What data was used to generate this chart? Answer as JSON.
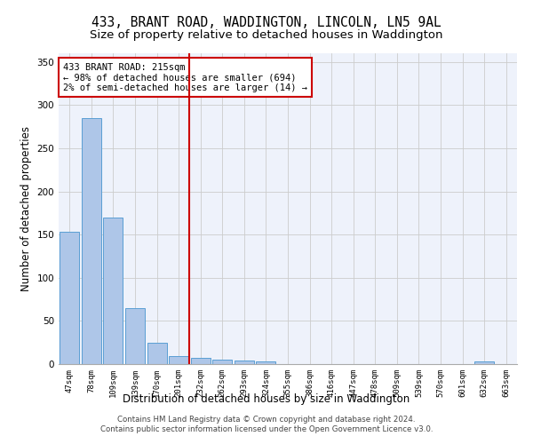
{
  "title": "433, BRANT ROAD, WADDINGTON, LINCOLN, LN5 9AL",
  "subtitle": "Size of property relative to detached houses in Waddington",
  "xlabel": "Distribution of detached houses by size in Waddington",
  "ylabel": "Number of detached properties",
  "bar_values": [
    153,
    285,
    170,
    65,
    25,
    9,
    7,
    5,
    4,
    3,
    0,
    0,
    0,
    0,
    0,
    0,
    0,
    0,
    0,
    3,
    0
  ],
  "bar_labels": [
    "47sqm",
    "78sqm",
    "109sqm",
    "139sqm",
    "170sqm",
    "201sqm",
    "232sqm",
    "262sqm",
    "293sqm",
    "324sqm",
    "355sqm",
    "386sqm",
    "416sqm",
    "447sqm",
    "478sqm",
    "509sqm",
    "539sqm",
    "570sqm",
    "601sqm",
    "632sqm",
    "663sqm"
  ],
  "bar_color": "#aec6e8",
  "bar_edge_color": "#5a9fd4",
  "background_color": "#eef2fb",
  "grid_color": "#cccccc",
  "vline_x_index": 6,
  "vline_color": "#cc0000",
  "annotation_text": "433 BRANT ROAD: 215sqm\n← 98% of detached houses are smaller (694)\n2% of semi-detached houses are larger (14) →",
  "annotation_box_color": "#ffffff",
  "annotation_box_edge_color": "#cc0000",
  "ylim": [
    0,
    360
  ],
  "yticks": [
    0,
    50,
    100,
    150,
    200,
    250,
    300,
    350
  ],
  "title_fontsize": 10.5,
  "subtitle_fontsize": 9.5,
  "xlabel_fontsize": 8.5,
  "ylabel_fontsize": 8.5,
  "footer_line1": "Contains HM Land Registry data © Crown copyright and database right 2024.",
  "footer_line2": "Contains public sector information licensed under the Open Government Licence v3.0."
}
